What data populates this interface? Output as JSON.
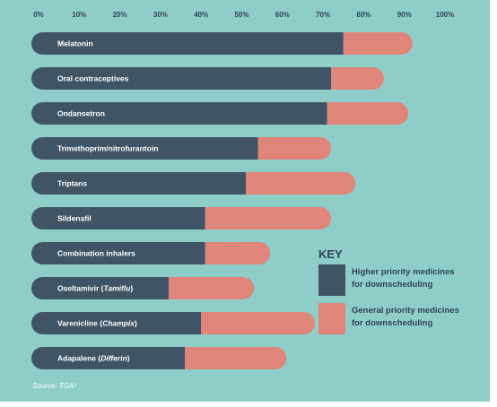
{
  "colors": {
    "background": "#8fcdc8",
    "higher": "#3f5566",
    "general": "#e0857a"
  },
  "chart_data": {
    "type": "bar",
    "orientation": "horizontal",
    "stacked": true,
    "xlim": [
      0,
      100
    ],
    "x_tick_labels": [
      "0%",
      "10%",
      "20%",
      "30%",
      "40%",
      "50%",
      "60%",
      "70%",
      "80%",
      "90%",
      "100%"
    ],
    "grid": false,
    "legend_position": "right",
    "categories": [
      {
        "parts": [
          {
            "text": "Melatonin",
            "italic": false
          }
        ]
      },
      {
        "parts": [
          {
            "text": "Oral contraceptives",
            "italic": false
          }
        ]
      },
      {
        "parts": [
          {
            "text": "Ondansetron",
            "italic": false
          }
        ]
      },
      {
        "parts": [
          {
            "text": "Trimethoprim/nitrofurantoin",
            "italic": false
          }
        ]
      },
      {
        "parts": [
          {
            "text": "Triptans",
            "italic": false
          }
        ]
      },
      {
        "parts": [
          {
            "text": "Sildenafil",
            "italic": false
          }
        ]
      },
      {
        "parts": [
          {
            "text": "Combination inhalers",
            "italic": false
          }
        ]
      },
      {
        "parts": [
          {
            "text": "Oseltamivir (",
            "italic": false
          },
          {
            "text": "Tamiflu",
            "italic": true
          },
          {
            "text": ")",
            "italic": false
          }
        ]
      },
      {
        "parts": [
          {
            "text": "Varenicline (",
            "italic": false
          },
          {
            "text": "Champix",
            "italic": true
          },
          {
            "text": ")",
            "italic": false
          }
        ]
      },
      {
        "parts": [
          {
            "text": "Adapalene (",
            "italic": false
          },
          {
            "text": "Differin",
            "italic": true
          },
          {
            "text": ")",
            "italic": false
          }
        ]
      }
    ],
    "series": [
      {
        "name": "Higher priority medicines for downscheduling",
        "values": [
          75,
          72,
          71,
          54,
          51,
          41,
          41,
          32,
          40,
          36
        ]
      },
      {
        "name": "General priority medicines for downscheduling",
        "values": [
          17,
          13,
          20,
          18,
          27,
          31,
          16,
          21,
          28,
          25
        ]
      }
    ]
  },
  "key": {
    "title": "KEY",
    "items": [
      {
        "lines": [
          "Higher priority medicines",
          "for downscheduling"
        ]
      },
      {
        "lines": [
          "General priority medicines",
          "for downscheduling"
        ]
      }
    ]
  },
  "source": "Source: TGA³"
}
